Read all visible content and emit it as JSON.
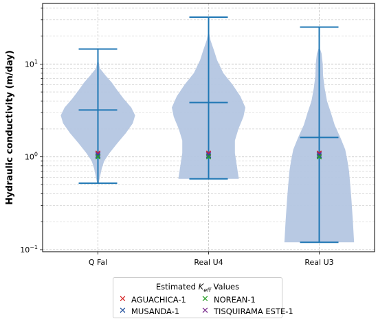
{
  "chart_data": {
    "type": "violin",
    "ylabel": "Hydraulic conductivity (m/day)",
    "xlabel": "",
    "yscale": "log",
    "ylim": [
      0.095,
      45
    ],
    "yticks": [
      {
        "value": 0.1,
        "base": "10",
        "exp": "−1"
      },
      {
        "value": 1,
        "base": "10",
        "exp": "0"
      },
      {
        "value": 10,
        "base": "10",
        "exp": "1"
      }
    ],
    "grid": true,
    "categories": [
      "Q Fal",
      "Real U4",
      "Real U3"
    ],
    "violins": [
      {
        "min": 0.52,
        "mean": 3.2,
        "max": 14.5,
        "profile": [
          [
            0.52,
            0.02
          ],
          [
            0.6,
            0.05
          ],
          [
            0.75,
            0.1
          ],
          [
            0.9,
            0.16
          ],
          [
            1.1,
            0.3
          ],
          [
            1.4,
            0.5
          ],
          [
            1.8,
            0.72
          ],
          [
            2.3,
            0.9
          ],
          [
            2.8,
            0.96
          ],
          [
            3.4,
            0.86
          ],
          [
            4.2,
            0.67
          ],
          [
            5.2,
            0.5
          ],
          [
            6.3,
            0.36
          ],
          [
            7.5,
            0.2
          ],
          [
            9.0,
            0.05
          ],
          [
            10.5,
            0.02
          ]
        ]
      },
      {
        "min": 0.58,
        "mean": 3.85,
        "max": 32,
        "profile": [
          [
            0.58,
            0.78
          ],
          [
            0.8,
            0.73
          ],
          [
            1.1,
            0.68
          ],
          [
            1.5,
            0.68
          ],
          [
            2.0,
            0.77
          ],
          [
            2.7,
            0.9
          ],
          [
            3.4,
            0.95
          ],
          [
            4.5,
            0.82
          ],
          [
            6.0,
            0.62
          ],
          [
            8.0,
            0.38
          ],
          [
            11.0,
            0.22
          ],
          [
            14.0,
            0.14
          ],
          [
            18.0,
            0.05
          ],
          [
            22.0,
            0.01
          ]
        ]
      },
      {
        "min": 0.12,
        "mean": 1.62,
        "max": 25,
        "profile": [
          [
            0.12,
            0.9
          ],
          [
            0.2,
            0.87
          ],
          [
            0.35,
            0.83
          ],
          [
            0.5,
            0.8
          ],
          [
            0.7,
            0.77
          ],
          [
            0.9,
            0.73
          ],
          [
            1.2,
            0.67
          ],
          [
            1.6,
            0.55
          ],
          [
            2.2,
            0.4
          ],
          [
            3.0,
            0.3
          ],
          [
            4.0,
            0.2
          ],
          [
            5.5,
            0.14
          ],
          [
            7.5,
            0.1
          ],
          [
            10.0,
            0.09
          ],
          [
            13.0,
            0.06
          ],
          [
            15.0,
            0.01
          ]
        ]
      }
    ],
    "legend": {
      "title_main": "Estimated ",
      "title_sym": "K",
      "title_sub": "eff",
      "title_tail": " Values",
      "placement": "lower center, below axes",
      "entries": [
        {
          "name": "AGUACHICA-1",
          "color": "#d62728"
        },
        {
          "name": "MUSANDA-1",
          "color": "#1f4e9c"
        },
        {
          "name": "NOREAN-1",
          "color": "#2ca02c"
        },
        {
          "name": "TISQUIRAMA ESTE-1",
          "color": "#7b2d8e"
        }
      ]
    },
    "markers": [
      {
        "series": "AGUACHICA-1",
        "values": [
          1.1,
          1.1,
          1.1
        ]
      },
      {
        "series": "TISQUIRAMA ESTE-1",
        "values": [
          1.07,
          1.07,
          1.07
        ]
      },
      {
        "series": "MUSANDA-1",
        "values": [
          1.03,
          1.03,
          1.03
        ]
      },
      {
        "series": "NOREAN-1",
        "values": [
          1.0,
          1.0,
          1.0
        ]
      }
    ],
    "colors": {
      "violin_fill": "#b4c6e2",
      "line": "#1f77b4",
      "grid": "#c8c8c8"
    }
  }
}
